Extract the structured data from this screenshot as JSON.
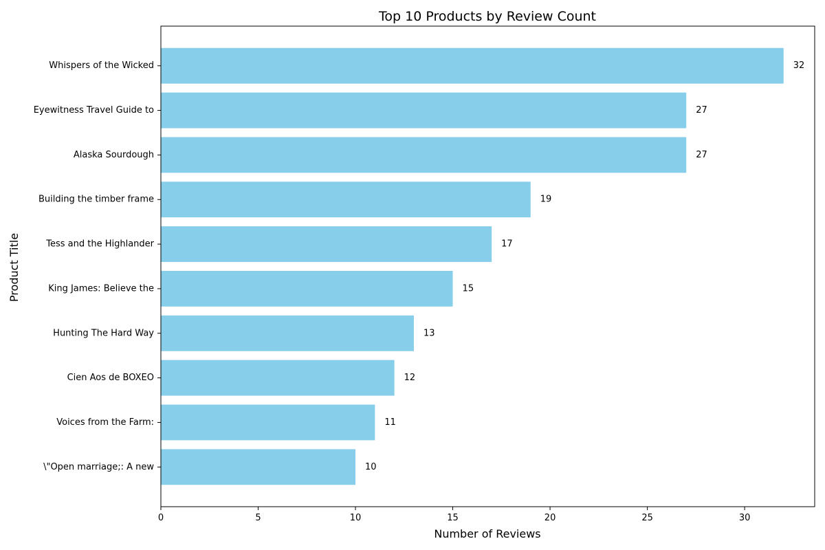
{
  "chart_data": {
    "type": "bar",
    "orientation": "horizontal",
    "title": "Top 10 Products by Review Count",
    "xlabel": "Number of Reviews",
    "ylabel": "Product Title",
    "categories": [
      "Whispers of the Wicked",
      "Eyewitness Travel Guide to",
      "Alaska Sourdough",
      "Building the timber frame",
      "Tess and the Highlander",
      "King James: Believe the",
      "Hunting The Hard Way",
      "Cien Aos de BOXEO",
      "Voices from the Farm:",
      "\\\"Open marriage;: A new"
    ],
    "values": [
      32,
      27,
      27,
      19,
      17,
      15,
      13,
      12,
      11,
      10
    ],
    "xlim": [
      0,
      33.6
    ],
    "xticks": [
      0,
      5,
      10,
      15,
      20,
      25,
      30
    ],
    "grid": false,
    "bar_color": "#87ceeb"
  }
}
